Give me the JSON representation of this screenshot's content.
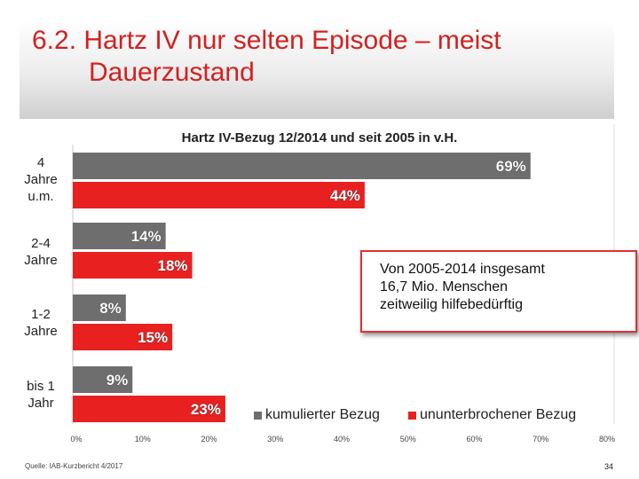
{
  "slide": {
    "title_line1": "6.2. Hartz IV nur selten Episode – meist",
    "title_line2": "Dauerzustand",
    "source": "Quelle: IAB-Kurzbericht 4/2017",
    "page_number": "34"
  },
  "colors": {
    "gray": "#6e6e6e",
    "red": "#e82020"
  },
  "callout": {
    "line1": "Von 2005-2014 insgesamt",
    "line2": "16,7 Mio. Menschen",
    "line3": "zeitweilig hilfebedürftig"
  },
  "chart_data": {
    "type": "bar",
    "orientation": "horizontal",
    "title": "Hartz IV-Bezug 12/2014 und seit 2005 in v.H.",
    "categories": [
      "4 Jahre u.m.",
      "2-4 Jahre",
      "1-2 Jahre",
      "bis 1 Jahr"
    ],
    "category_lines": [
      [
        "4",
        "Jahre",
        "u.m."
      ],
      [
        "2-4",
        "Jahre"
      ],
      [
        "1-2",
        "Jahre"
      ],
      [
        "bis 1",
        "Jahr"
      ]
    ],
    "series": [
      {
        "name": "kumulierter Bezug",
        "values": [
          69,
          14,
          8,
          9
        ],
        "labels": [
          "69%",
          "14%",
          "8%",
          "9%"
        ]
      },
      {
        "name": "ununterbrochener Bezug",
        "values": [
          44,
          18,
          15,
          23
        ],
        "labels": [
          "44%",
          "18%",
          "15%",
          "23%"
        ]
      }
    ],
    "xlim": [
      0,
      80
    ],
    "xticks": [
      "0%",
      "10%",
      "20%",
      "30%",
      "40%",
      "50%",
      "60%",
      "70%",
      "80%"
    ],
    "legend_position": "bottom-right"
  }
}
